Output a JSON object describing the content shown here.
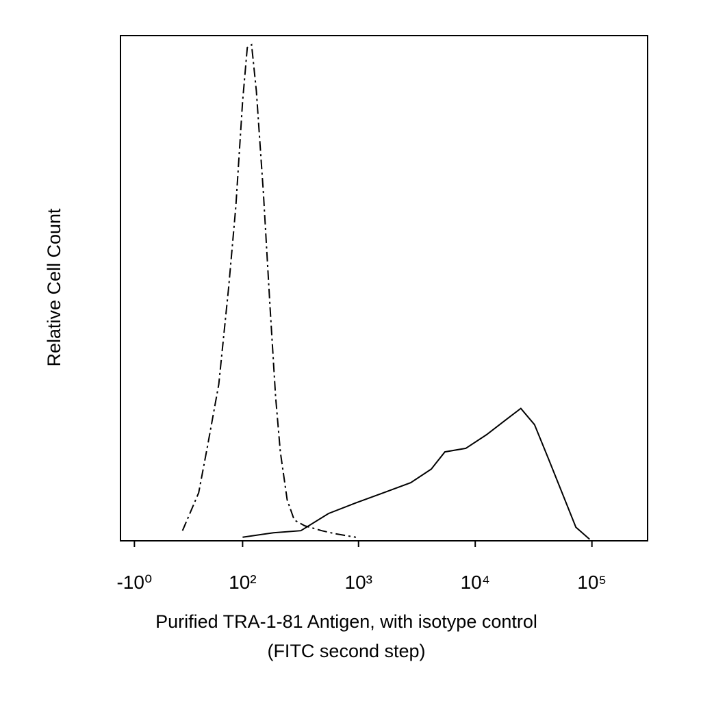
{
  "chart_data": {
    "type": "line",
    "ylabel": "Relative Cell Count",
    "xlabel": [
      "Purified TRA-1-81 Antigen, with isotype control",
      "(FITC second step)"
    ],
    "xscale": "biexponential",
    "xlim": [
      -8,
      300000
    ],
    "ylim": [
      0,
      100
    ],
    "xticks": [
      {
        "value": -1,
        "label": "-10⁰"
      },
      {
        "value": 100,
        "label": "10²"
      },
      {
        "value": 1000,
        "label": "10³"
      },
      {
        "value": 10000,
        "label": "10⁴"
      },
      {
        "value": 100000,
        "label": "10⁵"
      }
    ],
    "series": [
      {
        "color": "#000000",
        "dash": "dash-dot",
        "x": [
          26,
          39,
          48,
          61,
          75,
          87,
          100,
          110,
          120,
          132,
          152,
          174,
          194,
          213,
          244,
          281,
          344,
          483,
          632,
          950
        ],
        "values": [
          2,
          9.5,
          19,
          31,
          50,
          66,
          87,
          97.6,
          98.2,
          89,
          69,
          46,
          28.5,
          17.6,
          8.1,
          4.1,
          3,
          2,
          1.4,
          0.7
        ]
      },
      {
        "color": "#000000",
        "dash": "solid",
        "x": [
          100,
          186,
          320,
          553,
          950,
          1630,
          2800,
          4200,
          5500,
          8300,
          12500,
          18700,
          24600,
          32200,
          42300,
          55500,
          72800,
          95500
        ],
        "values": [
          0.7,
          1.6,
          2,
          5.4,
          7.5,
          9.5,
          11.5,
          14.2,
          17.6,
          18.3,
          21,
          24.1,
          26.2,
          23,
          16.3,
          9.5,
          2.7,
          0.3
        ]
      }
    ]
  }
}
